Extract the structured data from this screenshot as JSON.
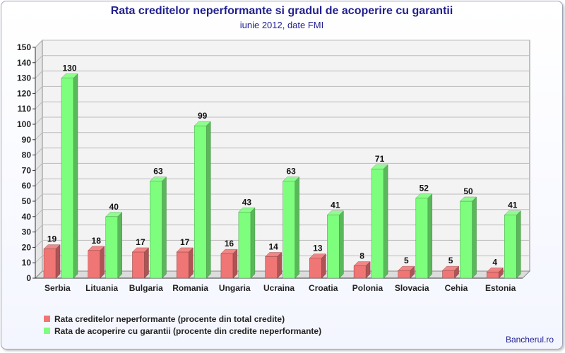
{
  "title": "Rata creditelor neperformante si gradul de acoperire cu garantii",
  "subtitle": "iunie 2012, date FMI",
  "credit": "Bancherul.ro",
  "colors": {
    "series1": "#f07575",
    "series2": "#7dff7d"
  },
  "chart_data": {
    "type": "bar",
    "categories": [
      "Serbia",
      "Lituania",
      "Bulgaria",
      "Romania",
      "Ungaria",
      "Ucraina",
      "Croatia",
      "Polonia",
      "Slovacia",
      "Cehia",
      "Estonia"
    ],
    "series": [
      {
        "name": "Rata creditelor neperformante (procente din total credite)",
        "values": [
          19,
          18,
          17,
          17,
          16,
          14,
          13,
          8,
          5,
          5,
          4
        ]
      },
      {
        "name": "Rata de acoperire cu garantii (procente din credite neperformante)",
        "values": [
          130,
          40,
          63,
          99,
          43,
          63,
          41,
          71,
          52,
          50,
          41
        ]
      }
    ],
    "ylim": [
      0,
      150
    ],
    "yticks": [
      0,
      10,
      20,
      30,
      40,
      50,
      60,
      70,
      80,
      90,
      100,
      110,
      120,
      130,
      140,
      150
    ],
    "grid": true,
    "legend": "bottom-left"
  }
}
